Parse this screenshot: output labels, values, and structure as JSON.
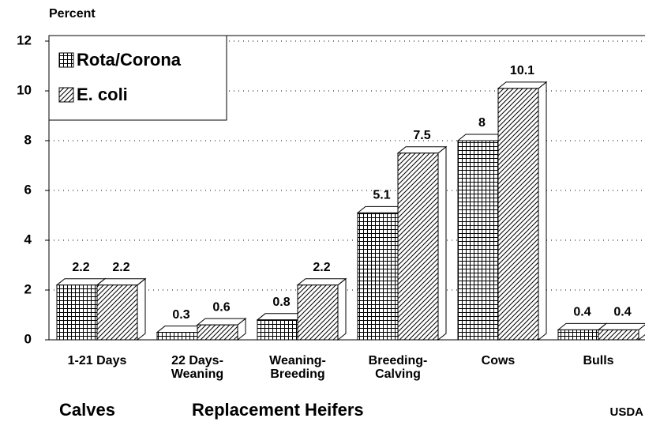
{
  "chart_data": {
    "type": "bar3d",
    "y_label": "Percent",
    "categories": [
      "1-21 Days",
      "22 Days-\nWeaning",
      "Weaning-\nBreeding",
      "Breeding-\nCalving",
      "Cows",
      "Bulls"
    ],
    "series": [
      {
        "name": "Rota/Corona",
        "color": "#000000",
        "pattern": "grid",
        "values": [
          2.2,
          0.3,
          0.8,
          5.1,
          8,
          0.4
        ]
      },
      {
        "name": "E. coli",
        "color": "#000000",
        "pattern": "diagonal",
        "values": [
          2.2,
          0.6,
          2.2,
          7.5,
          10.1,
          0.4
        ]
      }
    ],
    "ylim": [
      0,
      12
    ],
    "yticks": [
      0,
      2,
      4,
      6,
      8,
      10,
      12
    ],
    "grid": true,
    "legend": "top-left",
    "annotations": [
      "Calves",
      "Replacement Heifers",
      "USDA"
    ]
  }
}
